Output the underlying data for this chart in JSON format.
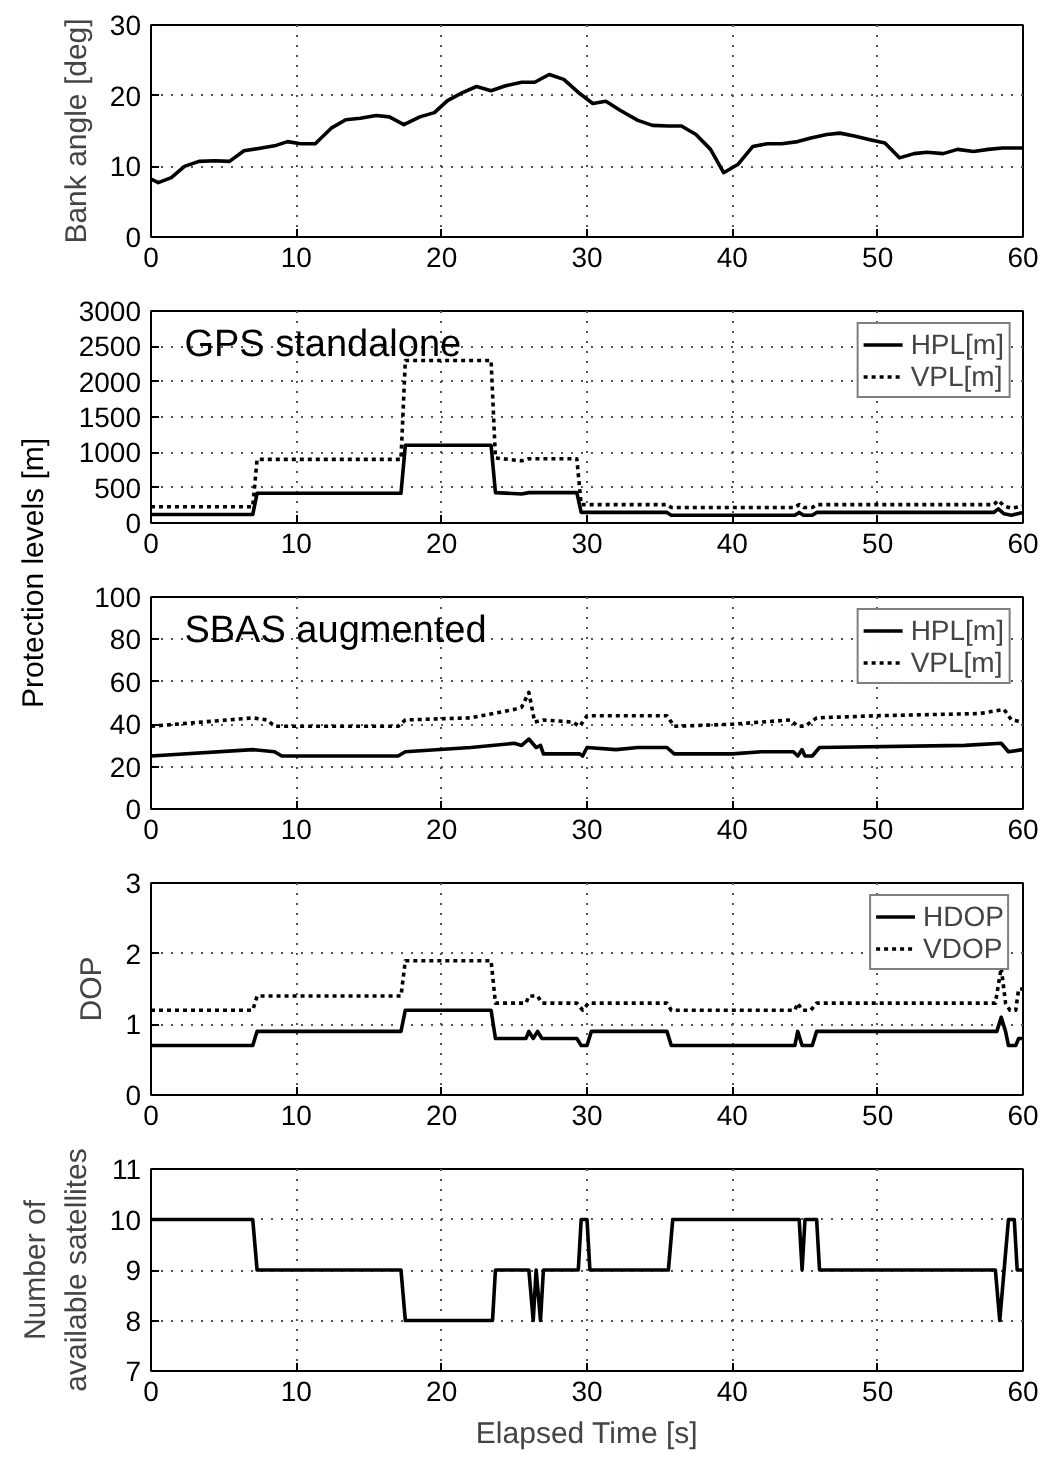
{
  "chart_data": [
    {
      "type": "line",
      "ylabel": "Bank angle [deg]",
      "xlim": [
        0,
        60
      ],
      "xticks": [
        0,
        10,
        20,
        30,
        40,
        50,
        60
      ],
      "ylim": [
        0,
        30
      ],
      "yticks": [
        0,
        10,
        20,
        30
      ],
      "grid": true,
      "series": [
        {
          "color": "#000000",
          "line_style": "solid",
          "x": [
            0,
            0.5,
            1.4,
            2.3,
            3.3,
            4.4,
            5.4,
            6.4,
            7.3,
            8.5,
            9.4,
            10.3,
            11.3,
            12.4,
            13.4,
            14.4,
            15.5,
            16.4,
            17.4,
            18.5,
            19.5,
            20.4,
            21.4,
            22.4,
            23.4,
            24.4,
            25.5,
            26.4,
            27.4,
            28.4,
            29.5,
            30.4,
            31.3,
            32.3,
            33.5,
            34.5,
            35.6,
            36.5,
            37.5,
            38.5,
            39.4,
            40.4,
            41.4,
            42.4,
            43.4,
            44.5,
            45.4,
            46.5,
            47.4,
            48.4,
            49.4,
            50.5,
            51.5,
            52.5,
            53.4,
            54.5,
            55.5,
            56.6,
            57.6,
            58.6,
            60
          ],
          "values": [
            8.2,
            7.7,
            8.4,
            10.0,
            10.7,
            10.8,
            10.7,
            12.2,
            12.5,
            12.9,
            13.5,
            13.2,
            13.2,
            15.4,
            16.6,
            16.8,
            17.2,
            17.0,
            15.9,
            17.0,
            17.6,
            19.3,
            20.4,
            21.3,
            20.7,
            21.4,
            21.9,
            21.9,
            23.0,
            22.3,
            20.3,
            18.9,
            19.2,
            17.9,
            16.5,
            15.8,
            15.7,
            15.7,
            14.5,
            12.4,
            9.1,
            10.3,
            12.8,
            13.2,
            13.2,
            13.5,
            14.0,
            14.5,
            14.7,
            14.3,
            13.8,
            13.3,
            11.2,
            11.8,
            12.0,
            11.8,
            12.4,
            12.1,
            12.4,
            12.6,
            12.6
          ]
        }
      ]
    },
    {
      "type": "line",
      "ylabel": "Protection levels [m]",
      "annotations": [
        "GPS standalone"
      ],
      "xlim": [
        0,
        60
      ],
      "xticks": [
        0,
        10,
        20,
        30,
        40,
        50,
        60
      ],
      "ylim": [
        0,
        3000
      ],
      "yticks": [
        0,
        500,
        1000,
        1500,
        2000,
        2500,
        3000
      ],
      "grid": true,
      "legend": "top right",
      "series": [
        {
          "name": "HPL[m]",
          "color": "#000000",
          "line_style": "solid",
          "x": [
            0,
            7.0,
            7.3,
            17.2,
            17.5,
            23.4,
            23.7,
            25.5,
            26.0,
            29.3,
            29.6,
            35.5,
            35.8,
            44.3,
            44.6,
            44.9,
            45.5,
            45.8,
            58.0,
            58.3,
            58.7,
            59.2,
            60
          ],
          "values": [
            120,
            120,
            420,
            420,
            1100,
            1100,
            430,
            410,
            430,
            430,
            150,
            150,
            110,
            110,
            150,
            110,
            110,
            150,
            150,
            200,
            130,
            110,
            150
          ]
        },
        {
          "name": "VPL[m]",
          "color": "#000000",
          "line_style": "dotted",
          "x": [
            0,
            7.0,
            7.3,
            17.2,
            17.5,
            23.4,
            23.7,
            25.5,
            26.0,
            29.3,
            29.6,
            35.5,
            35.8,
            44.3,
            44.6,
            44.9,
            45.5,
            45.8,
            58.0,
            58.3,
            58.7,
            59.2,
            60
          ],
          "values": [
            230,
            230,
            900,
            900,
            2300,
            2300,
            920,
            880,
            910,
            910,
            260,
            260,
            220,
            220,
            260,
            220,
            220,
            260,
            260,
            320,
            240,
            210,
            240
          ]
        }
      ]
    },
    {
      "type": "line",
      "annotations": [
        "SBAS augmented"
      ],
      "xlim": [
        0,
        60
      ],
      "xticks": [
        0,
        10,
        20,
        30,
        40,
        50,
        60
      ],
      "ylim": [
        0,
        100
      ],
      "yticks": [
        0,
        20,
        40,
        60,
        80,
        100
      ],
      "grid": true,
      "legend": "top right",
      "series": [
        {
          "name": "HPL[m]",
          "color": "#000000",
          "line_style": "solid",
          "x": [
            0,
            7,
            8.5,
            9,
            17,
            17.5,
            22,
            25,
            25.5,
            26,
            26.5,
            26.8,
            27,
            29.5,
            29.7,
            30,
            32,
            33.5,
            35.5,
            36,
            40,
            42,
            44.2,
            44.5,
            44.8,
            45,
            45.5,
            46,
            56,
            58.5,
            59,
            60
          ],
          "values": [
            25,
            28,
            27,
            25,
            25,
            27,
            29,
            31,
            30,
            33,
            29,
            30,
            26,
            26,
            25,
            29,
            28,
            29,
            29,
            26,
            26,
            27,
            27,
            25,
            28,
            25,
            25,
            29,
            30,
            31,
            27,
            28
          ]
        },
        {
          "name": "VPL[m]",
          "color": "#000000",
          "line_style": "dotted",
          "x": [
            0,
            7,
            8,
            8.5,
            17,
            17.5,
            22,
            25,
            25.5,
            26,
            26.4,
            27,
            29,
            29.5,
            30,
            35.5,
            36,
            40,
            44,
            44.5,
            45,
            45.8,
            50,
            57,
            58.7,
            59.2,
            60
          ],
          "values": [
            39,
            43,
            42,
            39,
            39,
            42,
            43,
            47,
            48,
            55,
            41,
            42,
            41,
            39,
            44,
            44,
            39,
            40,
            42,
            39,
            39,
            43,
            44,
            45,
            47,
            42,
            41
          ]
        }
      ]
    },
    {
      "type": "line",
      "ylabel": "DOP",
      "xlim": [
        0,
        60
      ],
      "xticks": [
        0,
        10,
        20,
        30,
        40,
        50,
        60
      ],
      "ylim": [
        0,
        3
      ],
      "yticks": [
        0,
        1,
        2,
        3
      ],
      "grid": true,
      "legend": "top right",
      "series": [
        {
          "name": "HDOP",
          "color": "#000000",
          "line_style": "solid",
          "x": [
            0,
            7,
            7.3,
            17.2,
            17.5,
            23.4,
            23.7,
            25.8,
            26,
            26.3,
            26.6,
            26.9,
            29.3,
            29.6,
            30,
            30.3,
            35.5,
            35.8,
            44.3,
            44.5,
            44.8,
            45.5,
            45.8,
            58.2,
            58.5,
            58.8,
            59,
            59.5,
            59.7,
            60
          ],
          "values": [
            0.7,
            0.7,
            0.9,
            0.9,
            1.2,
            1.2,
            0.8,
            0.8,
            0.9,
            0.8,
            0.9,
            0.8,
            0.8,
            0.7,
            0.7,
            0.9,
            0.9,
            0.7,
            0.7,
            0.9,
            0.7,
            0.7,
            0.9,
            0.9,
            1.1,
            0.9,
            0.7,
            0.7,
            0.8,
            0.8
          ]
        },
        {
          "name": "VDOP",
          "color": "#000000",
          "line_style": "dotted",
          "x": [
            0,
            7,
            7.3,
            17.2,
            17.5,
            23.4,
            23.7,
            25.8,
            26,
            26.3,
            26.6,
            26.9,
            29.3,
            29.7,
            30.1,
            35.5,
            35.8,
            44.3,
            44.5,
            44.8,
            45.4,
            45.8,
            58.1,
            58.5,
            58.8,
            59.1,
            59.5,
            59.7,
            60
          ],
          "values": [
            1.2,
            1.2,
            1.4,
            1.4,
            1.9,
            1.9,
            1.3,
            1.3,
            1.4,
            1.4,
            1.4,
            1.3,
            1.3,
            1.2,
            1.3,
            1.3,
            1.2,
            1.2,
            1.3,
            1.2,
            1.2,
            1.3,
            1.3,
            1.8,
            1.3,
            1.2,
            1.2,
            1.5,
            1.5
          ]
        }
      ]
    },
    {
      "type": "line",
      "ylabel": "Number of\navailable satellites",
      "xlabel": "Elapsed Time [s]",
      "xlim": [
        0,
        60
      ],
      "xticks": [
        0,
        10,
        20,
        30,
        40,
        50,
        60
      ],
      "ylim": [
        7,
        11
      ],
      "yticks": [
        7,
        8,
        9,
        10,
        11
      ],
      "grid": true,
      "series": [
        {
          "color": "#000000",
          "line_style": "solid",
          "x": [
            0,
            7.0,
            7.3,
            17.2,
            17.5,
            23.5,
            23.7,
            26.0,
            26.3,
            26.5,
            26.8,
            27.0,
            29.4,
            29.6,
            30.0,
            30.2,
            35.6,
            35.9,
            44.6,
            44.8,
            45.0,
            45.8,
            46.0,
            58.1,
            58.4,
            58.7,
            59.0,
            59.4,
            59.6,
            60
          ],
          "values": [
            10,
            10,
            9,
            9,
            8,
            8,
            9,
            9,
            8,
            9,
            8,
            9,
            9,
            10,
            10,
            9,
            9,
            10,
            10,
            9,
            10,
            10,
            9,
            9,
            8,
            9,
            10,
            10,
            9,
            9
          ]
        }
      ]
    }
  ]
}
